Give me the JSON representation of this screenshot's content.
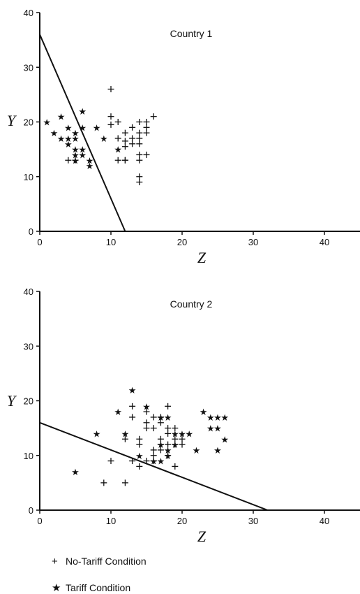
{
  "chart_data": [
    {
      "type": "scatter",
      "title": "Country 1",
      "xlabel": "Z",
      "ylabel": "Y",
      "xlim": [
        0,
        45
      ],
      "ylim": [
        0,
        40
      ],
      "xticks": [
        0,
        10,
        20,
        30,
        40
      ],
      "yticks": [
        0,
        10,
        20,
        30,
        40
      ],
      "line": {
        "x": [
          0,
          12
        ],
        "y": [
          36,
          0
        ]
      },
      "series": [
        {
          "name": "No-Tariff Condition",
          "marker": "+",
          "x": [
            10,
            10,
            10,
            11,
            11,
            12,
            12,
            12,
            12,
            13,
            13,
            13,
            14,
            14,
            14,
            14,
            14,
            14,
            14,
            15,
            15,
            15,
            15,
            16,
            4,
            5,
            14,
            11,
            12
          ],
          "y": [
            26,
            21,
            19.5,
            20,
            17,
            18,
            16.5,
            15.5,
            13,
            19,
            17,
            16,
            20,
            18,
            17,
            16,
            14,
            10,
            9,
            20,
            19,
            18,
            14,
            21,
            13,
            13,
            13,
            13,
            13
          ]
        },
        {
          "name": "Tariff Condition",
          "marker": "*",
          "x": [
            1,
            2,
            3,
            3,
            4,
            4,
            4,
            5,
            5,
            5,
            5,
            5,
            6,
            6,
            6,
            6,
            7,
            7,
            8,
            9,
            11
          ],
          "y": [
            20,
            18,
            21,
            17,
            19,
            17,
            16,
            18,
            17,
            15,
            14,
            13,
            22,
            19,
            15,
            14,
            13,
            12,
            19,
            17,
            15
          ]
        }
      ]
    },
    {
      "type": "scatter",
      "title": "Country 2",
      "xlabel": "Z",
      "ylabel": "Y",
      "xlim": [
        0,
        45
      ],
      "ylim": [
        0,
        40
      ],
      "xticks": [
        0,
        10,
        20,
        30,
        40
      ],
      "yticks": [
        0,
        10,
        20,
        30,
        40
      ],
      "line": {
        "x": [
          0,
          32
        ],
        "y": [
          16,
          0
        ]
      },
      "series": [
        {
          "name": "No-Tariff Condition",
          "marker": "+",
          "x": [
            9,
            10,
            12,
            13,
            13,
            13,
            14,
            14,
            15,
            15,
            15,
            16,
            16,
            16,
            16,
            17,
            17,
            17,
            17,
            18,
            18,
            18,
            18,
            19,
            19,
            19,
            20,
            20,
            14,
            16,
            17,
            18,
            19,
            12,
            15
          ],
          "y": [
            5,
            9,
            5,
            19,
            17,
            9,
            13,
            12,
            18,
            16,
            15,
            17,
            15,
            10,
            11,
            17,
            16,
            13,
            11,
            19,
            15,
            14,
            12,
            15,
            13,
            8,
            13,
            12,
            8,
            9,
            12,
            10,
            12,
            13,
            9
          ],
          "_": null
        },
        {
          "name": "Tariff Condition",
          "marker": "*",
          "x": [
            5,
            8,
            11,
            12,
            13,
            15,
            17,
            17,
            18,
            18,
            18,
            19,
            20,
            21,
            22,
            23,
            24,
            24,
            25,
            25,
            25,
            26,
            26,
            16,
            17,
            14,
            19
          ],
          "y": [
            7,
            14,
            18,
            14,
            22,
            19,
            17,
            12,
            17,
            11,
            10,
            12,
            14,
            14,
            11,
            18,
            17,
            15,
            17,
            15,
            11,
            17,
            13,
            9,
            9,
            10,
            14
          ]
        }
      ]
    }
  ],
  "legend": {
    "items": [
      {
        "symbol": "+",
        "label": "No-Tariff Condition"
      },
      {
        "symbol": "★",
        "label": "Tariff Condition"
      }
    ]
  }
}
